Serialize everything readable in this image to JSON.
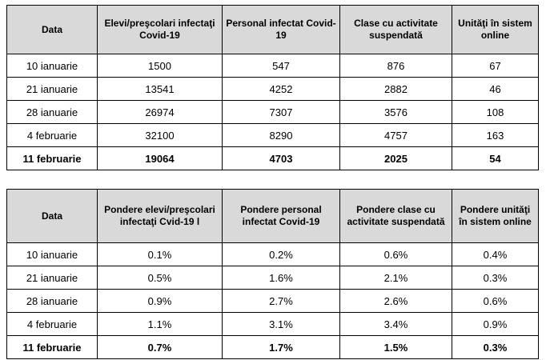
{
  "table1": {
    "headers": [
      "Data",
      "Elevi/preşcolari infectaţi Covid-19",
      "Personal infectat Covid-19",
      "Clase cu activitate suspendată",
      "Unităţi în sistem online"
    ],
    "rows": [
      [
        "10 ianuarie",
        "1500",
        "547",
        "876",
        "67"
      ],
      [
        "21 ianuarie",
        "13541",
        "4252",
        "2882",
        "46"
      ],
      [
        "28 ianuarie",
        "26974",
        "7307",
        "3576",
        "108"
      ],
      [
        "4 februarie",
        "32100",
        "8290",
        "4757",
        "163"
      ],
      [
        "11 februarie",
        "19064",
        "4703",
        "2025",
        "54"
      ]
    ]
  },
  "table2": {
    "headers": [
      "Data",
      "Pondere elevi/preşcolari infectaţi Cvid-19 l",
      "Pondere personal infectat Covid-19",
      "Pondere clase cu activitate suspendată",
      "Pondere unităţi în sistem online"
    ],
    "rows": [
      [
        "10 ianuarie",
        "0.1%",
        "0.2%",
        "0.6%",
        "0.4%"
      ],
      [
        "21 ianuarie",
        "0.5%",
        "1.6%",
        "2.1%",
        "0.3%"
      ],
      [
        "28 ianuarie",
        "0.9%",
        "2.7%",
        "2.6%",
        "0.6%"
      ],
      [
        "4 februarie",
        "1.1%",
        "3.1%",
        "3.4%",
        "0.9%"
      ],
      [
        "11 februarie",
        "0.7%",
        "1.7%",
        "1.5%",
        "0.3%"
      ]
    ]
  }
}
